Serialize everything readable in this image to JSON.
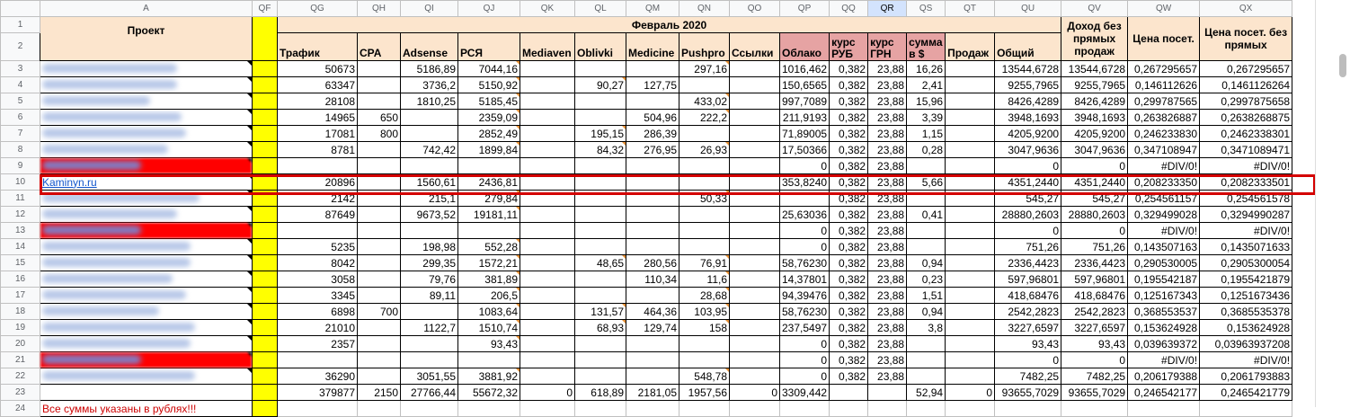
{
  "columns": [
    "A",
    "QF",
    "QG",
    "QH",
    "QI",
    "QJ",
    "QK",
    "QL",
    "QM",
    "QN",
    "QO",
    "QP",
    "QQ",
    "QR",
    "QS",
    "QT",
    "QU",
    "QV",
    "QW",
    "QX"
  ],
  "selected_column": "QR",
  "project_header": "Проект",
  "month_header": "Февраль 2020",
  "row2_headers": [
    "Трафик",
    "CPA",
    "Adsense",
    "РСЯ",
    "Mediaven",
    "Oblivki",
    "Medicine",
    "Pushpro",
    "Ссылки",
    "Облако",
    "курс РУБ",
    "курс ГРН",
    "сумма в $",
    "Продаж",
    "Общий"
  ],
  "income_header": "Доход без прямых продаж",
  "price_header": "Цена посет.",
  "price_no_sales_header": "Цена посет. без прямых",
  "highlight_project": "Kaminyn.ru",
  "footer_note": "Все суммы указаны в рублях!!!",
  "rows": [
    {
      "n": "3",
      "v": [
        "50673",
        "",
        "5186,89",
        "7044,16",
        "",
        "",
        "",
        "297,16",
        "",
        "1016,462",
        "0,382",
        "23,88",
        "16,26",
        "",
        "13544,6728",
        "13544,6728",
        "0,267295657",
        "0,267295657"
      ]
    },
    {
      "n": "4",
      "v": [
        "63347",
        "",
        "3736,2",
        "5150,92",
        "",
        "90,27",
        "127,75",
        "",
        "",
        "150,6565",
        "0,382",
        "23,88",
        "2,41",
        "",
        "9255,7965",
        "9255,7965",
        "0,146112626",
        "0,1461126264"
      ]
    },
    {
      "n": "5",
      "v": [
        "28108",
        "",
        "1810,25",
        "5185,45",
        "",
        "",
        "",
        "433,02",
        "",
        "997,7089",
        "0,382",
        "23,88",
        "15,96",
        "",
        "8426,4289",
        "8426,4289",
        "0,299787565",
        "0,2997875658"
      ]
    },
    {
      "n": "6",
      "v": [
        "14965",
        "650",
        "",
        "2359,09",
        "",
        "",
        "504,96",
        "222,2",
        "",
        "211,9193",
        "0,382",
        "23,88",
        "3,39",
        "",
        "3948,1693",
        "3948,1693",
        "0,263826887",
        "0,2638268875"
      ]
    },
    {
      "n": "7",
      "v": [
        "17081",
        "800",
        "",
        "2852,49",
        "",
        "195,15",
        "286,39",
        "",
        "",
        "71,89005",
        "0,382",
        "23,88",
        "1,15",
        "",
        "4205,9200",
        "4205,9200",
        "0,246233830",
        "0,2462338301"
      ]
    },
    {
      "n": "8",
      "v": [
        "8781",
        "",
        "742,42",
        "1899,84",
        "",
        "84,32",
        "276,95",
        "26,93",
        "",
        "17,50366",
        "0,382",
        "23,88",
        "0,28",
        "",
        "3047,9636",
        "3047,9636",
        "0,347108947",
        "0,3471089471"
      ]
    },
    {
      "n": "9",
      "v": [
        "",
        "",
        "",
        "",
        "",
        "",
        "",
        "",
        "",
        "0",
        "0,382",
        "23,88",
        "",
        "",
        "0",
        "0",
        "#DIV/0!",
        "#DIV/0!"
      ]
    },
    {
      "n": "10",
      "v": [
        "20896",
        "",
        "1560,61",
        "2436,81",
        "",
        "",
        "",
        "",
        "",
        "353,8240",
        "0,382",
        "23,88",
        "5,66",
        "",
        "4351,2440",
        "4351,2440",
        "0,208233350",
        "0,2082333501"
      ]
    },
    {
      "n": "11",
      "v": [
        "2142",
        "",
        "215,1",
        "279,84",
        "",
        "",
        "",
        "50,33",
        "",
        "",
        "0,382",
        "23,88",
        "",
        "",
        "545,27",
        "545,27",
        "0,254561157",
        "0,254561578"
      ]
    },
    {
      "n": "12",
      "v": [
        "87649",
        "",
        "9673,52",
        "19181,11",
        "",
        "",
        "",
        "",
        "",
        "25,63036",
        "0,382",
        "23,88",
        "0,41",
        "",
        "28880,2603",
        "28880,2603",
        "0,329499028",
        "0,3294990287"
      ]
    },
    {
      "n": "13",
      "v": [
        "",
        "",
        "",
        "",
        "",
        "",
        "",
        "",
        "",
        "0",
        "0,382",
        "23,88",
        "",
        "",
        "0",
        "0",
        "#DIV/0!",
        "#DIV/0!"
      ]
    },
    {
      "n": "14",
      "v": [
        "5235",
        "",
        "198,98",
        "552,28",
        "",
        "",
        "",
        "",
        "",
        "0",
        "0,382",
        "23,88",
        "",
        "",
        "751,26",
        "751,26",
        "0,143507163",
        "0,1435071633"
      ]
    },
    {
      "n": "15",
      "v": [
        "8042",
        "",
        "299,35",
        "1572,21",
        "",
        "48,65",
        "280,56",
        "76,91",
        "",
        "58,76230",
        "0,382",
        "23,88",
        "0,94",
        "",
        "2336,4423",
        "2336,4423",
        "0,290530005",
        "0,2905300054"
      ]
    },
    {
      "n": "16",
      "v": [
        "3058",
        "",
        "79,76",
        "381,89",
        "",
        "",
        "110,34",
        "11,6",
        "",
        "14,37801",
        "0,382",
        "23,88",
        "0,23",
        "",
        "597,96801",
        "597,96801",
        "0,195542187",
        "0,1955421879"
      ]
    },
    {
      "n": "17",
      "v": [
        "3345",
        "",
        "89,11",
        "206,5",
        "",
        "",
        "",
        "28,68",
        "",
        "94,39476",
        "0,382",
        "23,88",
        "1,51",
        "",
        "418,68476",
        "418,68476",
        "0,125167343",
        "0,1251673436"
      ]
    },
    {
      "n": "18",
      "v": [
        "6898",
        "700",
        "",
        "1083,64",
        "",
        "131,57",
        "464,36",
        "103,95",
        "",
        "58,76230",
        "0,382",
        "23,88",
        "0,94",
        "",
        "2542,2823",
        "2542,2823",
        "0,368553537",
        "0,3685535378"
      ]
    },
    {
      "n": "19",
      "v": [
        "21010",
        "",
        "1122,7",
        "1510,74",
        "",
        "68,93",
        "129,74",
        "158",
        "",
        "237,5497",
        "0,382",
        "23,88",
        "3,8",
        "",
        "3227,6597",
        "3227,6597",
        "0,153624928",
        "0,153624928"
      ]
    },
    {
      "n": "20",
      "v": [
        "2357",
        "",
        "",
        "93,43",
        "",
        "",
        "",
        "",
        "",
        "0",
        "0,382",
        "23,88",
        "",
        "",
        "93,43",
        "93,43",
        "0,039639372",
        "0,03963937208"
      ]
    },
    {
      "n": "21",
      "v": [
        "",
        "",
        "",
        "",
        "",
        "",
        "",
        "",
        "",
        "0",
        "0,382",
        "23,88",
        "",
        "",
        "0",
        "0",
        "#DIV/0!",
        "#DIV/0!"
      ]
    },
    {
      "n": "22",
      "v": [
        "36290",
        "",
        "3051,55",
        "3881,92",
        "",
        "",
        "",
        "548,78",
        "",
        "0",
        "0,382",
        "23,88",
        "",
        "",
        "7482,25",
        "7482,25",
        "0,206179388",
        "0,2061793883"
      ]
    },
    {
      "n": "23",
      "v": [
        "379877",
        "2150",
        "27766,44",
        "55672,32",
        "0",
        "618,89",
        "2181,05",
        "1957,56",
        "0",
        "3309,442",
        "",
        "",
        "52,94",
        "0",
        "93655,7029",
        "93655,7029",
        "0,246542177",
        "0,2465421779"
      ]
    }
  ],
  "colors": {
    "header_orange": "#fce5cd",
    "pink": "#e6a3a3",
    "yellow": "#ffff00",
    "highlight_red": "#d40000"
  }
}
